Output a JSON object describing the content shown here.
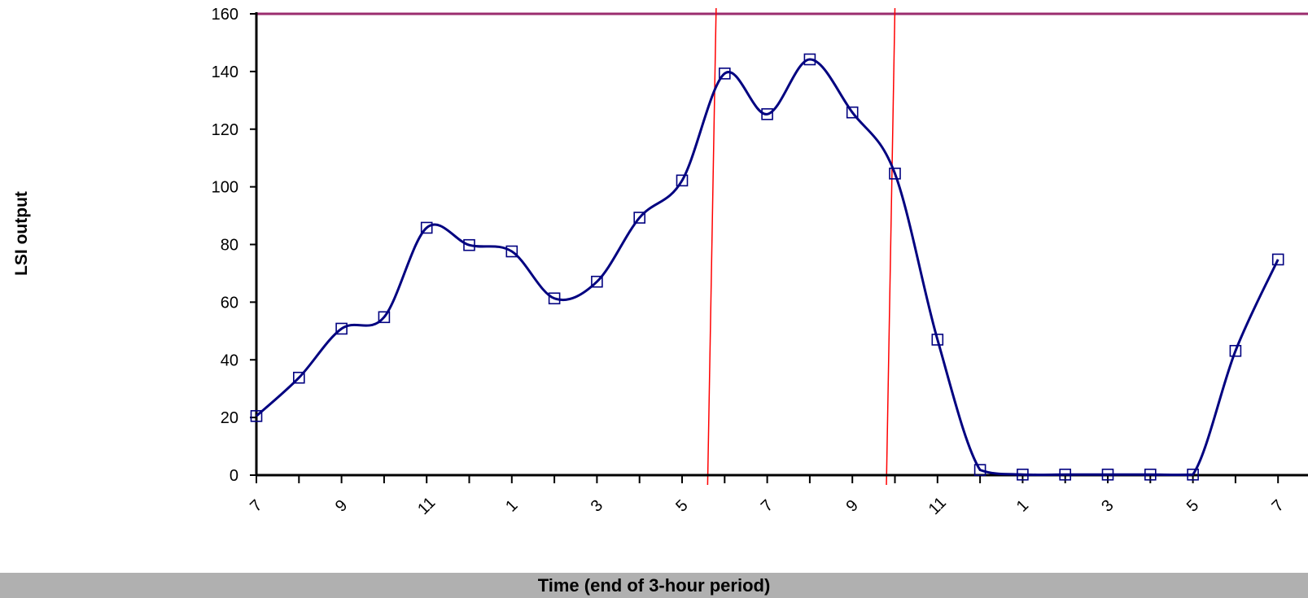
{
  "chart_data": {
    "type": "line",
    "title": "",
    "xlabel": "Time (end of 3-hour period)",
    "ylabel": "LSI output",
    "ylim": [
      0,
      160
    ],
    "yticks": [
      0,
      20,
      40,
      60,
      80,
      100,
      120,
      140,
      160
    ],
    "grid": false,
    "x_tick_labels": [
      "7",
      "",
      "9",
      "",
      "11",
      "",
      "1",
      "",
      "3",
      "",
      "5",
      "",
      "7",
      "",
      "9",
      "",
      "11",
      "",
      "1",
      "",
      "3",
      "",
      "5",
      "",
      "7"
    ],
    "series": [
      {
        "values": [
          20.5,
          33.8,
          50.8,
          54.8,
          85.8,
          79.8,
          77.6,
          61.3,
          67.1,
          89.3,
          102.2,
          139.3,
          125.2,
          144.2,
          125.8,
          104.6,
          47.0,
          1.8,
          0.2,
          0.2,
          0.2,
          0.2,
          0.2,
          43.1,
          74.8
        ],
        "color": "#000080",
        "marker": "square-open"
      }
    ],
    "reference_lines": [
      {
        "orientation": "horizontal",
        "y": 160,
        "color": "#9b2c6e"
      },
      {
        "orientation": "vertical",
        "x_index_from": 10.6,
        "x_index_to": 10.8,
        "color": "#ff0000"
      },
      {
        "orientation": "vertical",
        "x_index_from": 14.8,
        "x_index_to": 15.0,
        "color": "#ff0000"
      }
    ]
  },
  "colors": {
    "series_line": "#000080",
    "axis": "#000000",
    "top_line": "#9b2c6e",
    "marker_lines": "#ff0000",
    "xlabel_bar": "#b0b0b0"
  }
}
